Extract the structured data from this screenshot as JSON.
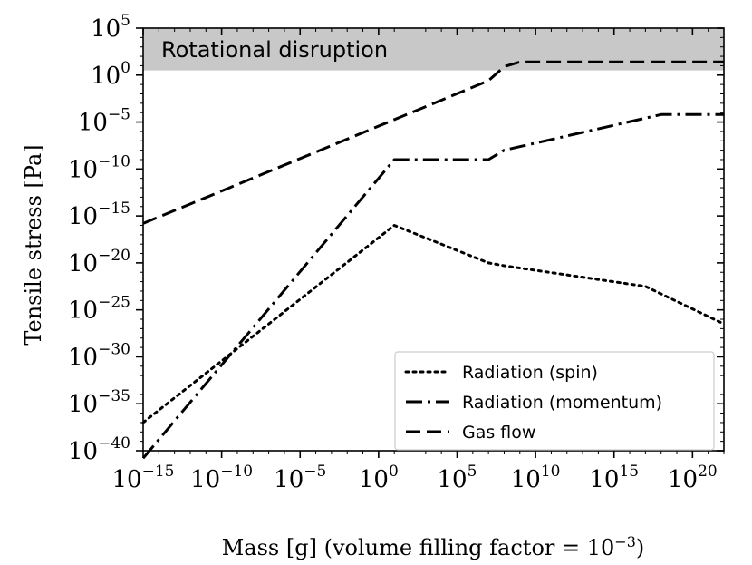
{
  "chart_data": {
    "type": "line",
    "xlabel": "Mass [g] (volume filling factor = 10",
    "xlabel_exponent": "−3",
    "xlabel_suffix": ")",
    "ylabel": "Tensile stress [Pa]",
    "xscale": "log",
    "yscale": "log",
    "xlim_log10": [
      -15,
      22
    ],
    "ylim_log10": [
      -40,
      5
    ],
    "x_ticks_log10": [
      -15,
      -10,
      -5,
      0,
      5,
      10,
      15,
      20
    ],
    "y_ticks_log10": [
      -40,
      -35,
      -30,
      -25,
      -20,
      -15,
      -10,
      -5,
      0,
      5
    ],
    "shaded_region": {
      "label": "Rotational disruption",
      "y_from_log10": 0.5,
      "y_to_log10": 5,
      "color": "#c8c8c8"
    },
    "legend_position": "lower-right",
    "series": [
      {
        "name": "Radiation (spin)",
        "style": "dotted",
        "x_log10": [
          -15,
          1,
          7,
          8,
          17,
          22
        ],
        "y_log10": [
          -37,
          -16,
          -20,
          -20.3,
          -22.5,
          -26.5
        ]
      },
      {
        "name": "Radiation (momentum)",
        "style": "dashdot",
        "x_log10": [
          -15,
          1,
          1.5,
          7,
          8,
          18,
          22
        ],
        "y_log10": [
          -40.8,
          -9,
          -9,
          -9,
          -8,
          -4.2,
          -4.2
        ]
      },
      {
        "name": "Gas flow",
        "style": "dashed",
        "x_log10": [
          -15,
          7,
          8,
          9,
          10,
          22
        ],
        "y_log10": [
          -15.8,
          -0.6,
          0.9,
          1.4,
          1.4,
          1.4
        ]
      }
    ]
  },
  "colors": {
    "line": "#000000",
    "shade": "#c8c8c8",
    "background": "#ffffff"
  }
}
